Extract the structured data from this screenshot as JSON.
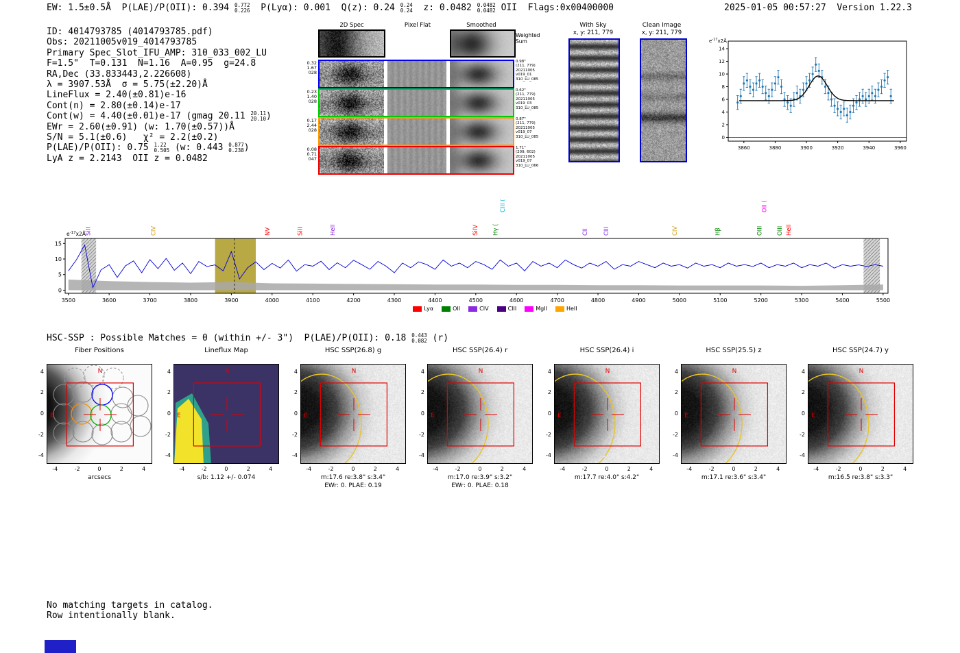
{
  "meta": {
    "datetime": "2025-01-05 00:57:27  Version 1.22.3"
  },
  "header": {
    "segments": [
      {
        "text": "EW: 1.5±0.5Å  "
      },
      {
        "text": "P(LAE)/P(OII): 0.394 ",
        "hi": "0.772",
        "lo": "0.226",
        "tail": "  "
      },
      {
        "text": "P(Lyα): 0.001  "
      },
      {
        "text": "Q(z): 0.24 ",
        "hi": "0.24",
        "lo": "0.24",
        "tail": "  "
      },
      {
        "text": "z: 0.0482 ",
        "hi": "0.0482",
        "lo": "0.0482",
        "tail": " OII  "
      },
      {
        "text": "Flags:0x00400000"
      }
    ]
  },
  "info": {
    "lines": [
      {
        "text": "ID: 4014793785 (4014793785.pdf)"
      },
      {
        "text": "Obs: 20211005v019_4014793785"
      },
      {
        "text": "Primary Spec_Slot_IFU_AMP: 310_033_002_LU"
      },
      {
        "text": "F=1.5\"  T=0.131  N=1.16  A=0.95  g=24.8"
      },
      {
        "text": "RA,Dec (33.833443,2.226608)"
      },
      {
        "text": "λ = 3907.53Å  σ = 5.75(±2.20)Å"
      },
      {
        "text": "LineFlux = 2.40(±0.81)e-16"
      },
      {
        "text": "Cont(n) = 2.80(±0.14)e-17"
      },
      {
        "text": "Cont(w) = 4.40(±0.01)e-17 (gmag 20.11 ",
        "hi": "20.11",
        "lo": "20.10",
        "tail": ")"
      },
      {
        "text": "EWr = 2.60(±0.91) (w: 1.70(±0.57))Å"
      },
      {
        "text": "S/N = 5.1(±0.6)   χ² = 2.2(±0.2)"
      },
      {
        "text": "P(LAE)/P(OII): 0.75 ",
        "hi": "1.22",
        "lo": "0.505",
        "tail": " (w: 0.443 ",
        "hi2": "0.877",
        "lo2": "0.238",
        "tail2": ")"
      },
      {
        "text": "LyA z = 2.2143  OII z = 0.0482"
      }
    ]
  },
  "spec2d": {
    "col_titles": [
      "2D Spec",
      "Pixel Flat",
      "Smoothed"
    ],
    "weighted_sum": "Weighted Sum",
    "rows": [
      {
        "left": [
          "0.32",
          "1.67",
          "028"
        ],
        "right": [
          "0.98\"",
          "(211, 779)",
          "20211005",
          "v019_01",
          "310_LU_085"
        ],
        "color": "#0000ee"
      },
      {
        "left": [
          "0.23",
          "1.40",
          "028"
        ],
        "right": [
          "0.62\"",
          "(211, 779)",
          "20211005",
          "v019_03",
          "310_LU_085"
        ],
        "color": "#00cc00"
      },
      {
        "left": [
          "0.17",
          "2.44",
          "028"
        ],
        "right": [
          "0.87\"",
          "(211, 779)",
          "20211005",
          "v019_07",
          "310_LU_085"
        ],
        "color": "#ff9900"
      },
      {
        "left": [
          "0.08",
          "0.71",
          "047"
        ],
        "right": [
          "1.71\"",
          "(209, 602)",
          "20211005",
          "v019_07",
          "310_LU_066"
        ],
        "color": "#ee0000"
      }
    ]
  },
  "sky_panels": {
    "with_sky": {
      "title": "With Sky",
      "coords": "x, y: 211, 779"
    },
    "clean": {
      "title": "Clean Image",
      "coords": "x, y: 211, 779"
    }
  },
  "hsc_line": {
    "text": "HSC-SSP : Possible Matches = 0 (within +/- 3\")  P(LAE)/P(OII): 0.18 ",
    "hi": "0.443",
    "lo": "0.082",
    "tail": " (r)"
  },
  "footer": {
    "line1": "No matching targets in catalog.",
    "line2": "Row intentionally blank."
  },
  "chart_data": [
    {
      "id": "line_fit_zoom",
      "type": "scatter",
      "ylabel_parts": {
        "base": "e",
        "sup": "-17",
        "rest": "x2Å"
      },
      "x_start": 3856,
      "x_step": 2,
      "y": [
        5.5,
        6.5,
        8.5,
        9.0,
        8.0,
        7.5,
        8.5,
        9.0,
        8.0,
        7.0,
        6.5,
        7.5,
        8.5,
        9.5,
        8.0,
        6.0,
        5.5,
        5.0,
        6.0,
        7.0,
        6.5,
        7.5,
        8.5,
        9.0,
        10.0,
        11.5,
        10.5,
        9.5,
        8.0,
        7.0,
        6.0,
        5.0,
        4.5,
        4.0,
        4.5,
        3.5,
        4.0,
        5.0,
        5.5,
        6.0,
        6.5,
        6.0,
        6.5,
        7.0,
        6.5,
        7.5,
        8.0,
        9.0,
        9.5,
        6.5
      ],
      "yerr": 1.1,
      "fit": {
        "type": "gaussian",
        "center": 3907.5,
        "sigma": 5.75,
        "peak": 3.9,
        "baseline": 5.8
      },
      "xticks": [
        3860,
        3880,
        3900,
        3920,
        3940,
        3960
      ],
      "yticks": [
        0,
        2,
        4,
        6,
        8,
        10,
        12,
        14
      ],
      "xlim": [
        3850,
        3964
      ],
      "ylim": [
        -0.6,
        15.2
      ],
      "point_color": "#1f77b4",
      "fit_color": "#000000"
    },
    {
      "id": "full_spectrum",
      "type": "line",
      "ylabel_parts": {
        "base": "e",
        "sup": "-17",
        "rest": "x2Å"
      },
      "x_start": 3500,
      "x_step": 20,
      "flux": [
        6.2,
        9.8,
        14.5,
        0.8,
        6.5,
        8.2,
        4.1,
        7.8,
        9.4,
        5.6,
        9.8,
        6.9,
        10.2,
        6.4,
        8.7,
        5.3,
        9.2,
        7.6,
        8.1,
        6.2,
        12.4,
        3.6,
        7.2,
        9.1,
        6.6,
        8.6,
        7.1,
        9.7,
        6.1,
        8.2,
        7.7,
        9.3,
        6.6,
        8.8,
        7.2,
        9.6,
        8.2,
        6.7,
        9.2,
        7.7,
        5.6,
        8.7,
        7.2,
        9.1,
        8.2,
        6.7,
        9.7,
        7.7,
        8.7,
        7.2,
        9.2,
        8.2,
        6.7,
        9.7,
        7.7,
        8.7,
        6.2,
        9.2,
        7.7,
        8.7,
        7.2,
        9.7,
        8.2,
        7.1,
        8.7,
        7.7,
        9.2,
        6.7,
        8.2,
        7.7,
        9.2,
        8.2,
        7.2,
        8.7,
        7.7,
        8.2,
        7.1,
        8.7,
        7.7,
        8.2,
        7.2,
        8.7,
        7.7,
        8.2,
        7.6,
        8.7,
        7.2,
        8.2,
        7.7,
        8.7,
        7.2,
        8.2,
        7.7,
        8.7,
        7.1,
        8.2,
        7.7,
        8.1,
        7.6,
        8.2,
        7.7
      ],
      "error_x_start": 3500,
      "error_x_step": 100,
      "error": [
        3.4,
        2.9,
        2.6,
        2.4,
        2.6,
        2.2,
        2.1,
        2.0,
        1.9,
        1.8,
        1.8,
        1.7,
        1.7,
        1.6,
        1.6,
        1.5,
        1.5,
        1.5,
        1.4,
        1.6,
        1.8
      ],
      "xticks": [
        3500,
        3600,
        3700,
        3800,
        3900,
        4000,
        4100,
        4200,
        4300,
        4400,
        4500,
        4600,
        4700,
        4800,
        4900,
        5000,
        5100,
        5200,
        5300,
        5400,
        5500
      ],
      "yticks": [
        0,
        5,
        10,
        15
      ],
      "xlim": [
        3492,
        5512
      ],
      "ylim": [
        -1,
        16.6
      ],
      "line_color": "#0000dd",
      "highlight_band": [
        3860,
        3960
      ],
      "highlight_color": "#b0a030",
      "center_line": 3907.5,
      "hatch_bands": [
        [
          3532,
          3568
        ],
        [
          5452,
          5492
        ]
      ],
      "legend": [
        {
          "label": "Lyα",
          "color": "#ff0000"
        },
        {
          "label": "OII",
          "color": "#008000"
        },
        {
          "label": "CIV",
          "color": "#8a2be2"
        },
        {
          "label": "CIII",
          "color": "#4b0082"
        },
        {
          "label": "MgII",
          "color": "#ff00ff"
        },
        {
          "label": "HeII",
          "color": "#ffa500"
        }
      ],
      "line_markers": [
        {
          "wavelength": 3550,
          "label": "SiII",
          "color": "#8a2be2",
          "tier": 0
        },
        {
          "wavelength": 3710,
          "label": "CIV",
          "color": "#d4a017",
          "tier": 0
        },
        {
          "wavelength": 3990,
          "label": "NV",
          "color": "#ff0000",
          "tier": 0
        },
        {
          "wavelength": 4070,
          "label": "SiII",
          "color": "#ff0000",
          "tier": 0
        },
        {
          "wavelength": 4150,
          "label": "HeII",
          "color": "#8a2be2",
          "tier": 0
        },
        {
          "wavelength": 4500,
          "label": "SiIV",
          "color": "#ff0000",
          "tier": 0
        },
        {
          "wavelength": 4550,
          "label": "Hγ (",
          "color": "#008000",
          "tier": 0
        },
        {
          "wavelength": 4568,
          "label": "CIII (",
          "color": "#00bcd4",
          "tier": 1
        },
        {
          "wavelength": 4770,
          "label": "CII",
          "color": "#8a2be2",
          "tier": 0
        },
        {
          "wavelength": 4822,
          "label": "CIII",
          "color": "#8a2be2",
          "tier": 0
        },
        {
          "wavelength": 4990,
          "label": "CIV",
          "color": "#d4a017",
          "tier": 0
        },
        {
          "wavelength": 5095,
          "label": "Hβ",
          "color": "#008000",
          "tier": 0
        },
        {
          "wavelength": 5198,
          "label": "OIII",
          "color": "#008000",
          "tier": 0
        },
        {
          "wavelength": 5210,
          "label": "OII (",
          "color": "#ff00ff",
          "tier": 1
        },
        {
          "wavelength": 5248,
          "label": "OIII",
          "color": "#008000",
          "tier": 0
        },
        {
          "wavelength": 5270,
          "label": "HeII",
          "color": "#ff0000",
          "tier": 0
        }
      ]
    }
  ],
  "cutouts": {
    "axis_ticks": [
      -4,
      -2,
      0,
      2,
      4
    ],
    "compass": {
      "n": "N",
      "e": "E"
    },
    "panels": [
      {
        "title": "Fiber Positions",
        "xlabel": "arcsecs",
        "kind": "fibers"
      },
      {
        "title": "Lineflux Map",
        "xlabel": "s/b: 1.12 +/- 0.074",
        "kind": "lineflux"
      },
      {
        "title": "HSC SSP(26.8) g",
        "caption1": "m:17.6 re:3.8\" s:3.4\"",
        "caption2": "EWr: 0. PLAE: 0.19",
        "kind": "hsc"
      },
      {
        "title": "HSC SSP(26.4) r",
        "caption1": "m:17.0 re:3.9\" s:3.2\"",
        "caption2": "EWr: 0. PLAE: 0.18",
        "kind": "hsc"
      },
      {
        "title": "HSC SSP(26.4) i",
        "caption1": "m:17.7 re:4.0\" s:4.2\"",
        "kind": "hsc-dashed"
      },
      {
        "title": "HSC SSP(25.5) z",
        "caption1": "m:17.1 re:3.6\" s:3.4\"",
        "kind": "hsc"
      },
      {
        "title": "HSC SSP(24.7) y",
        "caption1": "m:16.5 re:3.8\" s:3.3\"",
        "kind": "hsc"
      }
    ]
  }
}
